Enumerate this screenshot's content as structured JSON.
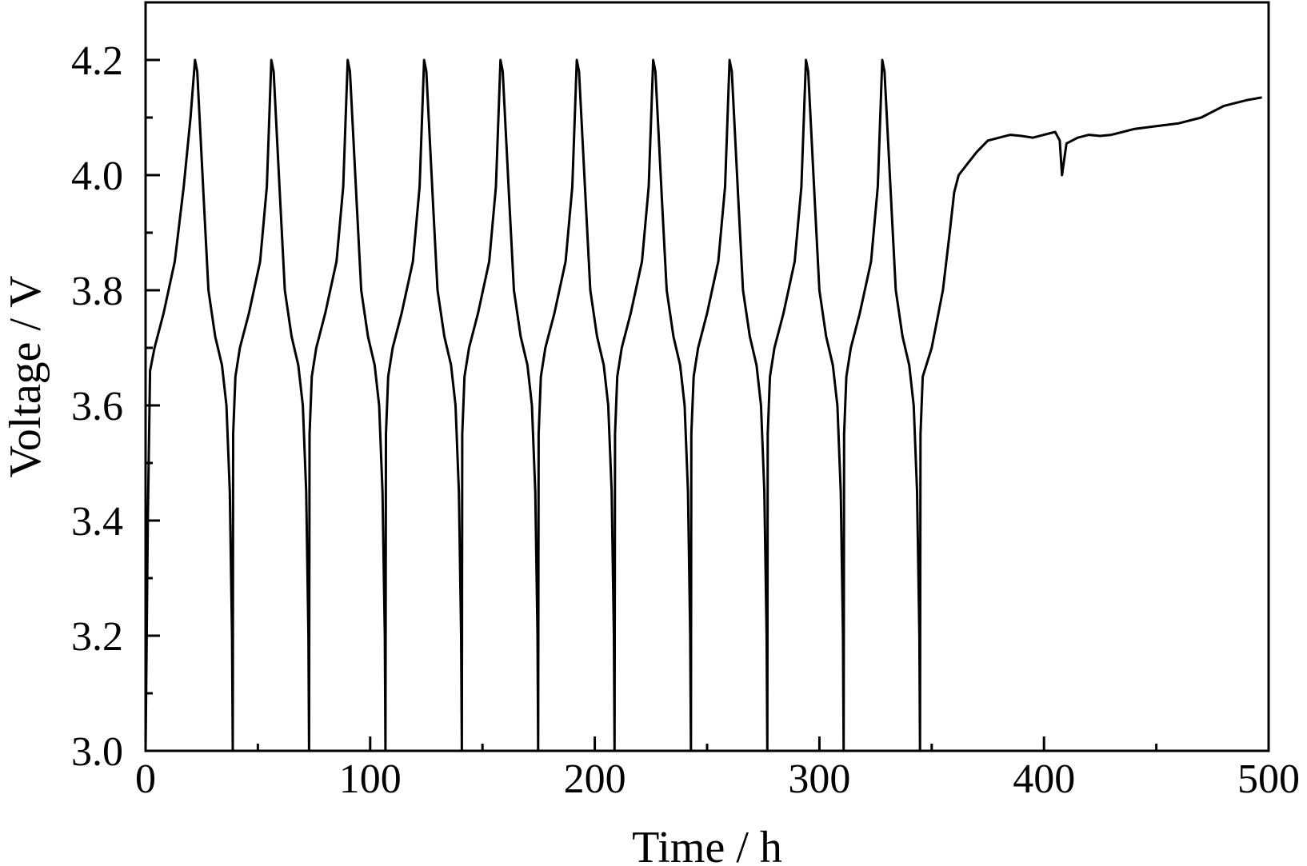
{
  "chart_data": {
    "type": "line",
    "title": "",
    "xlabel": "Time / h",
    "ylabel": "Voltage / V",
    "xlim": [
      0,
      500
    ],
    "ylim": [
      3.0,
      4.3
    ],
    "x_ticks": [
      "0",
      "100",
      "200",
      "300",
      "400",
      "500"
    ],
    "y_ticks": [
      "3.0",
      "3.2",
      "3.4",
      "3.6",
      "3.8",
      "4.0",
      "4.2"
    ],
    "grid": false,
    "legend": "none",
    "line_color": "#000000",
    "series": [
      {
        "name": "",
        "x": [
          0,
          1,
          2,
          4,
          8,
          13,
          17,
          20,
          22,
          23,
          26,
          28,
          31,
          34,
          36,
          37.5,
          38.5,
          38.8,
          39,
          40,
          42,
          46,
          51,
          54,
          56,
          57,
          60,
          62,
          65,
          68,
          70,
          71.5,
          72.5,
          72.8,
          73,
          74,
          76,
          80,
          85,
          88,
          90,
          91,
          94,
          96,
          99,
          102,
          104,
          105.5,
          106.5,
          106.8,
          107,
          108,
          110,
          114,
          119,
          122,
          124,
          125,
          128,
          130,
          133,
          136,
          138,
          139.5,
          140.5,
          140.8,
          141,
          142,
          144,
          148,
          153,
          156,
          158,
          159,
          162,
          164,
          167,
          170,
          172,
          173.5,
          174.5,
          174.8,
          175,
          176,
          178,
          182,
          187,
          190,
          192,
          193,
          196,
          198,
          201,
          204,
          206,
          207.5,
          208.5,
          208.8,
          209,
          210,
          212,
          216,
          221,
          224,
          226,
          227,
          230,
          232,
          235,
          238,
          240,
          241.5,
          242.5,
          242.8,
          243,
          244,
          246,
          250,
          255,
          258,
          260,
          261,
          264,
          266,
          269,
          272,
          274,
          275.5,
          276.5,
          276.8,
          277,
          278,
          280,
          284,
          289,
          292,
          294,
          295,
          298,
          300,
          303,
          306,
          308,
          309.5,
          310.5,
          310.8,
          311,
          312,
          314,
          318,
          323,
          326,
          328,
          329,
          332,
          334,
          337,
          340,
          342,
          343.5,
          344.5,
          344.8,
          345,
          346,
          350,
          355,
          358,
          360,
          362,
          366,
          370,
          375,
          380,
          385,
          390,
          395,
          400,
          405,
          407,
          408,
          410,
          415,
          420,
          425,
          430,
          440,
          450,
          460,
          470,
          480,
          490,
          497
        ],
        "y": [
          3.0,
          3.4,
          3.66,
          3.7,
          3.76,
          3.85,
          3.98,
          4.1,
          4.2,
          4.18,
          3.95,
          3.8,
          3.72,
          3.67,
          3.6,
          3.45,
          3.2,
          3.0,
          3.55,
          3.65,
          3.7,
          3.76,
          3.85,
          3.98,
          4.2,
          4.18,
          3.95,
          3.8,
          3.72,
          3.67,
          3.6,
          3.45,
          3.2,
          3.0,
          3.55,
          3.65,
          3.7,
          3.76,
          3.85,
          3.98,
          4.2,
          4.18,
          3.95,
          3.8,
          3.72,
          3.67,
          3.6,
          3.45,
          3.2,
          3.0,
          3.55,
          3.65,
          3.7,
          3.76,
          3.85,
          3.98,
          4.2,
          4.18,
          3.95,
          3.8,
          3.72,
          3.67,
          3.6,
          3.45,
          3.2,
          3.0,
          3.55,
          3.65,
          3.7,
          3.76,
          3.85,
          3.98,
          4.2,
          4.18,
          3.95,
          3.8,
          3.72,
          3.67,
          3.6,
          3.45,
          3.2,
          3.0,
          3.55,
          3.65,
          3.7,
          3.76,
          3.85,
          3.98,
          4.2,
          4.18,
          3.95,
          3.8,
          3.72,
          3.67,
          3.6,
          3.45,
          3.2,
          3.0,
          3.55,
          3.65,
          3.7,
          3.76,
          3.85,
          3.98,
          4.2,
          4.18,
          3.95,
          3.8,
          3.72,
          3.67,
          3.6,
          3.45,
          3.2,
          3.0,
          3.55,
          3.65,
          3.7,
          3.76,
          3.85,
          3.98,
          4.2,
          4.18,
          3.95,
          3.8,
          3.72,
          3.67,
          3.6,
          3.45,
          3.2,
          3.0,
          3.55,
          3.65,
          3.7,
          3.76,
          3.85,
          3.98,
          4.2,
          4.18,
          3.95,
          3.8,
          3.72,
          3.67,
          3.6,
          3.45,
          3.2,
          3.0,
          3.55,
          3.65,
          3.7,
          3.76,
          3.85,
          3.98,
          4.2,
          4.18,
          3.95,
          3.8,
          3.72,
          3.67,
          3.6,
          3.45,
          3.2,
          3.0,
          3.55,
          3.65,
          3.7,
          3.8,
          3.9,
          3.97,
          4.0,
          4.02,
          4.04,
          4.06,
          4.065,
          4.07,
          4.068,
          4.065,
          4.07,
          4.075,
          4.06,
          4.0,
          4.055,
          4.065,
          4.07,
          4.068,
          4.07,
          4.08,
          4.085,
          4.09,
          4.1,
          4.12,
          4.13,
          4.135
        ]
      }
    ]
  }
}
